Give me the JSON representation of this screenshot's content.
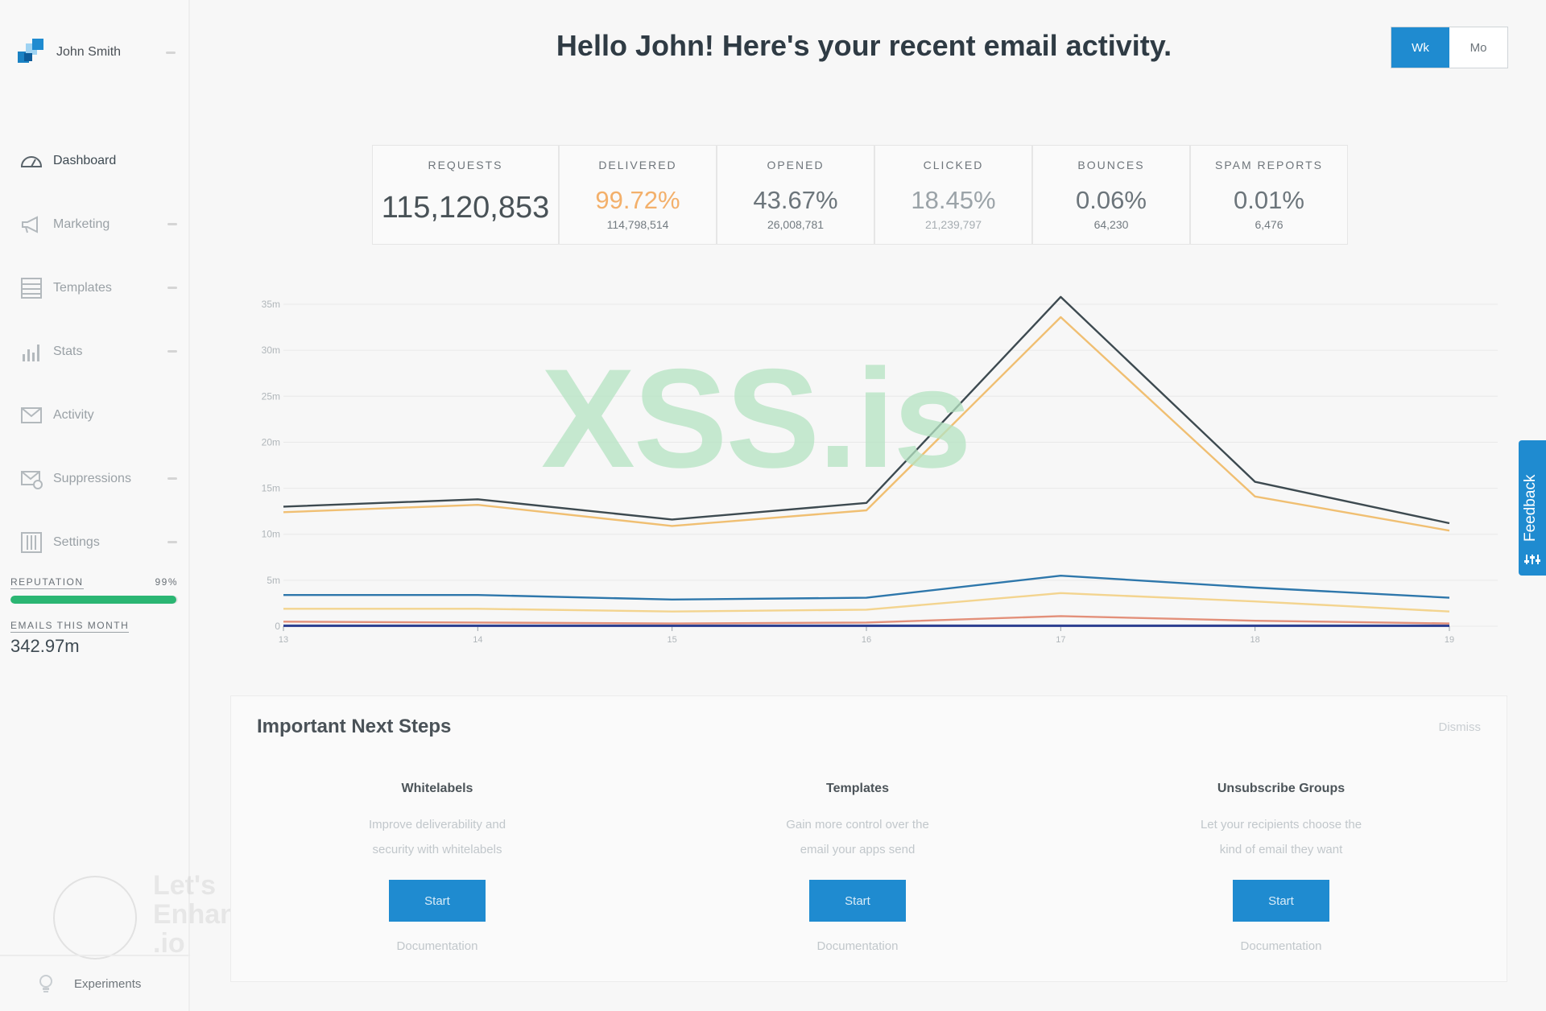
{
  "user": {
    "name": "John Smith"
  },
  "nav": [
    {
      "label": "Dashboard",
      "icon": "gauge-icon",
      "active": true,
      "caret": false
    },
    {
      "label": "Marketing",
      "icon": "megaphone-icon",
      "active": false,
      "caret": true
    },
    {
      "label": "Templates",
      "icon": "template-icon",
      "active": false,
      "caret": true
    },
    {
      "label": "Stats",
      "icon": "bar-chart-icon",
      "active": false,
      "caret": true
    },
    {
      "label": "Activity",
      "icon": "envelope-icon",
      "active": false,
      "caret": false
    },
    {
      "label": "Suppressions",
      "icon": "envelope-block-icon",
      "active": false,
      "caret": true
    },
    {
      "label": "Settings",
      "icon": "settings-grid-icon",
      "active": false,
      "caret": true
    }
  ],
  "reputation": {
    "label": "REPUTATION",
    "value": "99%",
    "fraction": 0.99,
    "color": "#2bb673"
  },
  "emails_month": {
    "label": "EMAILS THIS MONTH",
    "value": "342.97m"
  },
  "footer": {
    "experiments_label": "Experiments"
  },
  "header": {
    "title": "Hello John! Here's your recent email activity.",
    "toggle_week": "Wk",
    "toggle_month": "Mo"
  },
  "stats": [
    {
      "label": "REQUESTS",
      "main": "115,120,853",
      "sub": ""
    },
    {
      "label": "DELIVERED",
      "main": "99.72%",
      "sub": "114,798,514"
    },
    {
      "label": "OPENED",
      "main": "43.67%",
      "sub": "26,008,781"
    },
    {
      "label": "CLICKED",
      "main": "18.45%",
      "sub": "21,239,797"
    },
    {
      "label": "BOUNCES",
      "main": "0.06%",
      "sub": "64,230"
    },
    {
      "label": "SPAM REPORTS",
      "main": "0.01%",
      "sub": "6,476"
    }
  ],
  "chart_data": {
    "type": "line",
    "x": [
      "13",
      "14",
      "15",
      "16",
      "17",
      "18",
      "19"
    ],
    "yticks": [
      "0",
      "5m",
      "10m",
      "15m",
      "20m",
      "25m",
      "30m",
      "35m"
    ],
    "ylim": [
      0,
      35
    ],
    "grid": true,
    "series": [
      {
        "color": "#3d4a50",
        "values": [
          13,
          13.8,
          11.6,
          13.4,
          35.8,
          15.7,
          11.2
        ]
      },
      {
        "color": "#f0bf72",
        "values": [
          12.4,
          13.2,
          10.9,
          12.6,
          33.6,
          14.1,
          10.4
        ]
      },
      {
        "color": "#2e77ab",
        "values": [
          3.4,
          3.4,
          2.9,
          3.1,
          5.5,
          4.2,
          3.1
        ]
      },
      {
        "color": "#f3d48f",
        "values": [
          1.9,
          1.9,
          1.6,
          1.8,
          3.6,
          2.7,
          1.6
        ]
      },
      {
        "color": "#e3907a",
        "values": [
          0.5,
          0.4,
          0.3,
          0.4,
          1.1,
          0.6,
          0.3
        ]
      },
      {
        "color": "#2c3f91",
        "values": [
          0.05,
          0.05,
          0.05,
          0.05,
          0.06,
          0.05,
          0.05
        ]
      }
    ]
  },
  "watermark": {
    "text": "XSS.is"
  },
  "enhance_watermark": {
    "text": [
      "Let's",
      "Enhance",
      ".io"
    ]
  },
  "next_steps": {
    "title": "Important Next Steps",
    "dismiss": "Dismiss",
    "items": [
      {
        "title": "Whitelabels",
        "desc": [
          "Improve deliverability and",
          "security with whitelabels"
        ],
        "button": "Start",
        "doc": "Documentation"
      },
      {
        "title": "Templates",
        "desc": [
          "Gain more control over the",
          "email your apps send"
        ],
        "button": "Start",
        "doc": "Documentation"
      },
      {
        "title": "Unsubscribe Groups",
        "desc": [
          "Let your recipients choose the",
          "kind of email they want"
        ],
        "button": "Start",
        "doc": "Documentation"
      }
    ]
  },
  "feedback": {
    "label": "Feedback"
  },
  "colors": {
    "accent": "#1f8bd0",
    "title": "#2f3b44"
  }
}
